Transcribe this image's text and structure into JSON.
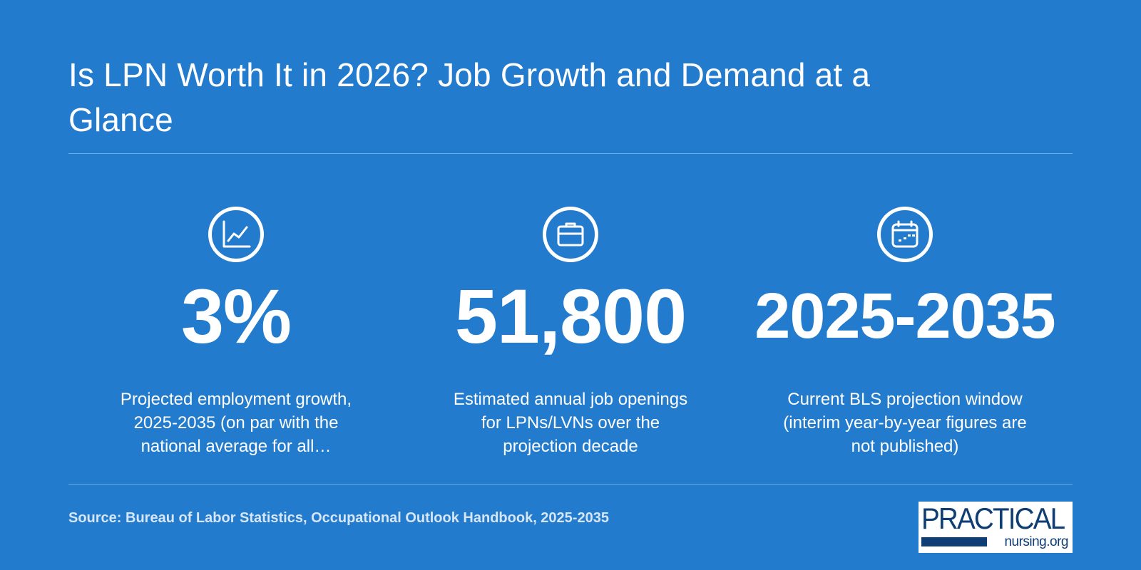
{
  "title": "Is LPN Worth It in 2026? Job Growth and Demand at a Glance",
  "stats": [
    {
      "icon": "chart-line-icon",
      "value": "3%",
      "description": "Projected employment growth, 2025-2035 (on par with the national average for all…"
    },
    {
      "icon": "briefcase-icon",
      "value": "51,800",
      "description": "Estimated annual job openings for LPNs/LVNs over the projection decade"
    },
    {
      "icon": "calendar-icon",
      "value": "2025-2035",
      "description": "Current BLS projection window (interim year-by-year figures are not published)"
    }
  ],
  "source": "Source: Bureau of Labor Statistics, Occupational Outlook Handbook, 2025-2035",
  "logo": {
    "line1": "PRACTICAL",
    "line2": "nursing.org"
  },
  "colors": {
    "background": "#237bce",
    "text": "#ffffff",
    "logo_navy": "#0e3e73"
  }
}
